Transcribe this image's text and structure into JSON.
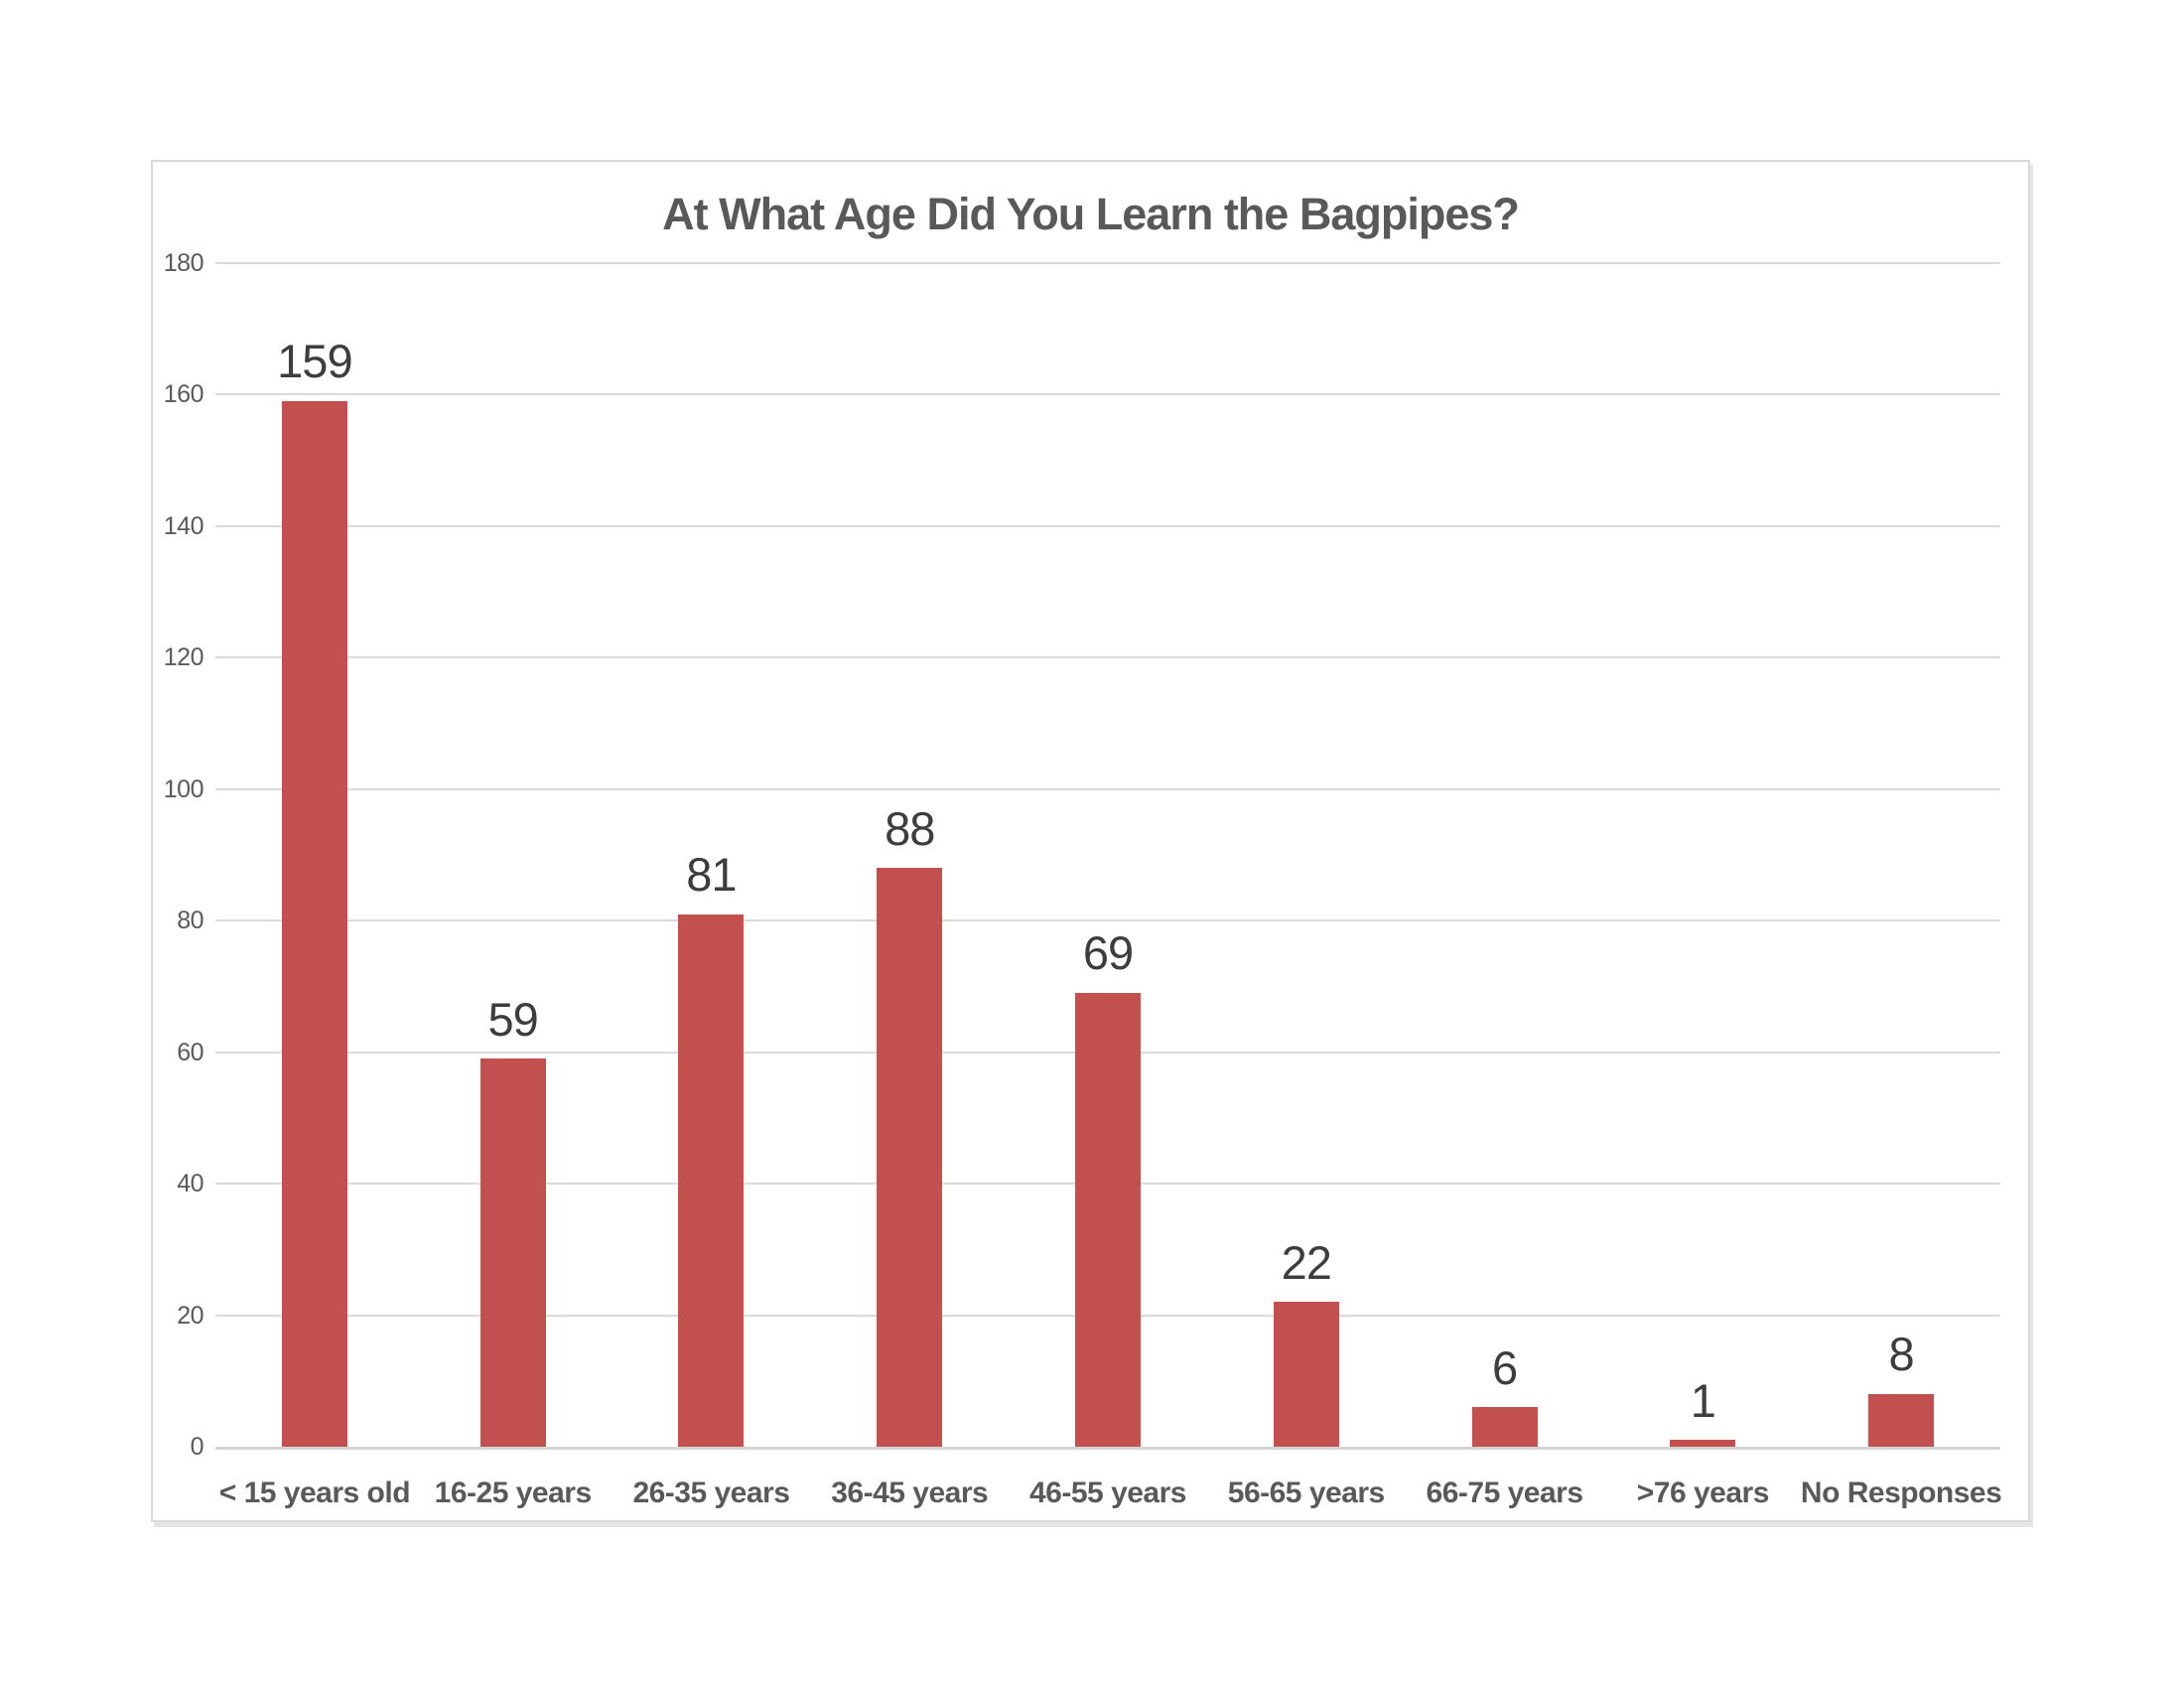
{
  "chart_data": {
    "type": "bar",
    "title": "At What Age Did You Learn the Bagpipes?",
    "categories": [
      "< 15 years old",
      "16-25 years",
      "26-35 years",
      "36-45 years",
      "46-55 years",
      "56-65 years",
      "66-75 years",
      ">76 years",
      "No Responses"
    ],
    "values": [
      159,
      59,
      81,
      88,
      69,
      22,
      6,
      1,
      8
    ],
    "data_labels": [
      159,
      59,
      81,
      88,
      69,
      22,
      6,
      1,
      8
    ],
    "xlabel": "",
    "ylabel": "",
    "ylim": [
      0,
      180
    ],
    "yticks": [
      0,
      20,
      40,
      60,
      80,
      100,
      120,
      140,
      160,
      180
    ],
    "grid": true,
    "legend": false,
    "colors": {
      "bar": "#c1504f",
      "gridline": "#dadada",
      "axis_line": "#d4d4d4",
      "tick_label": "#595959",
      "category_label": "#595959",
      "value_label": "#3d3d3d",
      "title": "#595959",
      "border": "#d9d9d9",
      "background": "#ffffff"
    }
  }
}
